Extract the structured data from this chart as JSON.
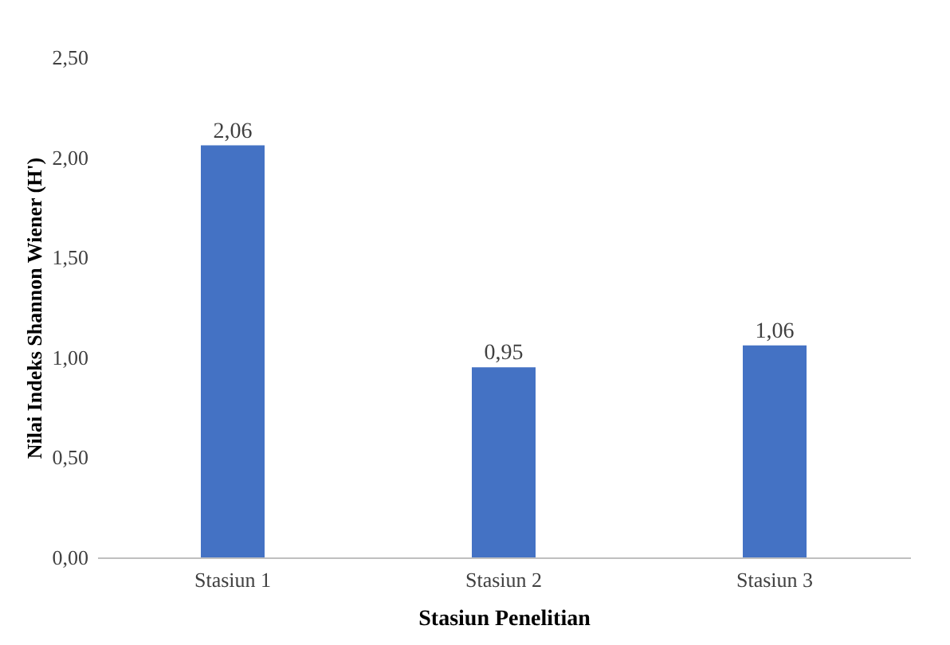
{
  "chart_data": {
    "type": "bar",
    "xlabel": "Stasiun Penelitian",
    "ylabel": "Nilai Indeks Shannon Wiener (H')",
    "categories": [
      "Stasiun 1",
      "Stasiun 2",
      "Stasiun 3"
    ],
    "values": [
      2.06,
      0.95,
      1.06
    ],
    "color": "#4472c4",
    "value_labels": [
      "2,06",
      "0,95",
      "1,06"
    ],
    "ylim": [
      0,
      2.5
    ],
    "yticks": [
      {
        "value": 0,
        "label": "0,00"
      },
      {
        "value": 0.5,
        "label": "0,50"
      },
      {
        "value": 1,
        "label": "1,00"
      },
      {
        "value": 1.5,
        "label": "1,50"
      },
      {
        "value": 2,
        "label": "2,00"
      },
      {
        "value": 2.5,
        "label": "2,50"
      }
    ],
    "grid": false
  }
}
